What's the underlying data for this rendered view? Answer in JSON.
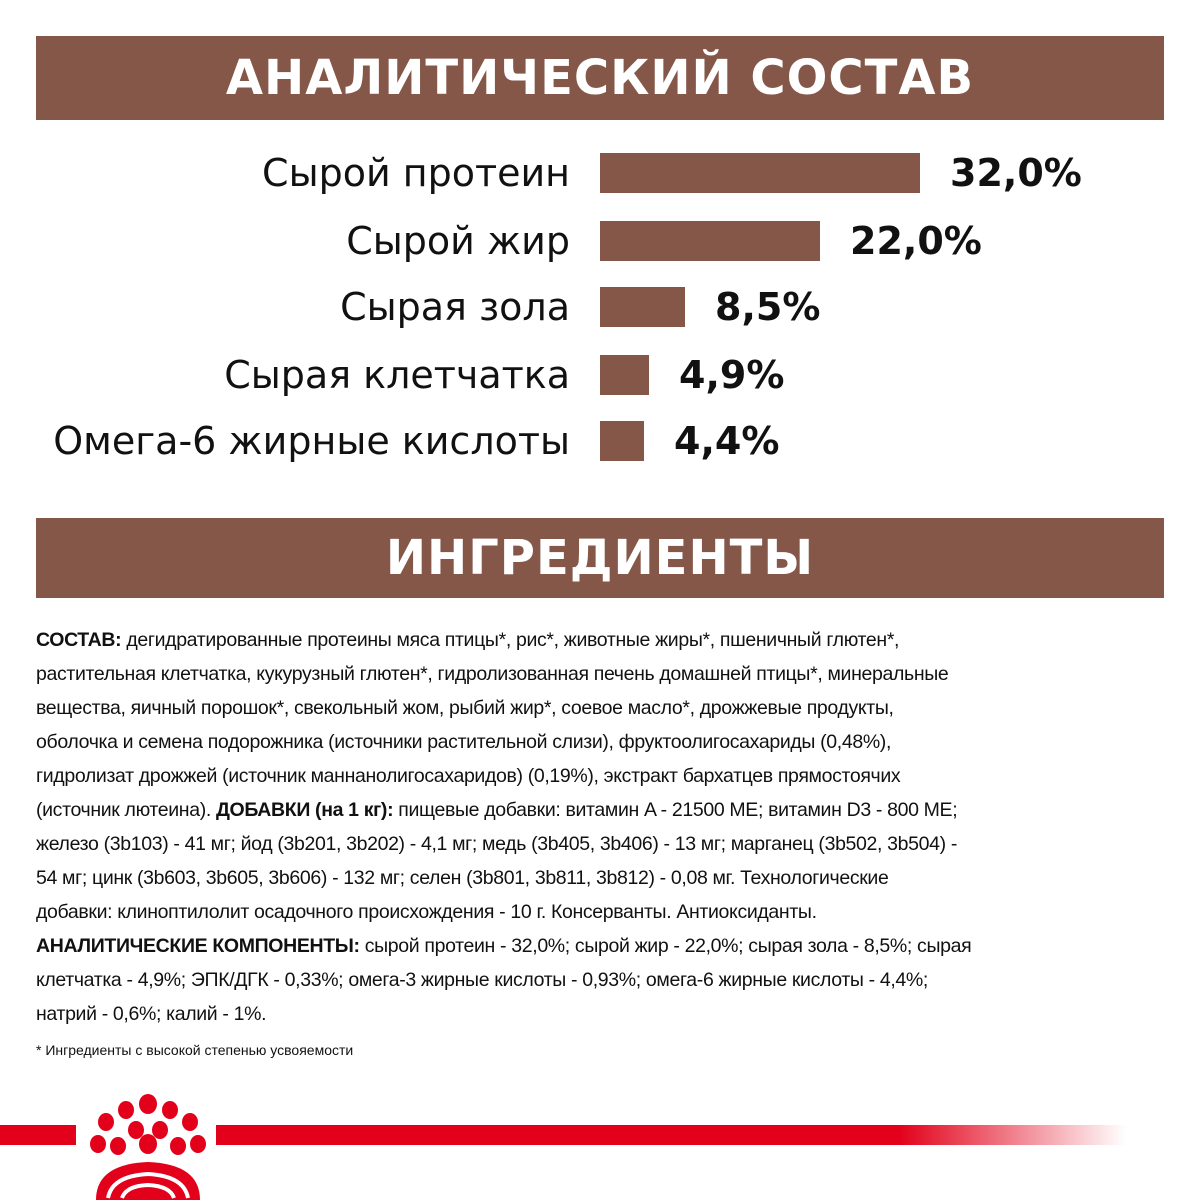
{
  "header_analytic": "АНАЛИТИЧЕСКИЙ СОСТАВ",
  "header_ingredients": "ИНГРЕДИЕНТЫ",
  "colors": {
    "bar": "#855749",
    "brand_red": "#e2001a"
  },
  "chart_data": {
    "type": "bar",
    "orientation": "horizontal",
    "title": "АНАЛИТИЧЕСКИЙ СОСТАВ",
    "categories": [
      "Сырой протеин",
      "Сырой жир",
      "Сырая зола",
      "Сырая клетчатка",
      "Омега-6 жирные кислоты"
    ],
    "values": [
      32.0,
      22.0,
      8.5,
      4.9,
      4.4
    ],
    "labels": [
      "32,0%",
      "22,0%",
      "8,5%",
      "4,9%",
      "4,4%"
    ],
    "unit": "%",
    "grid": false
  },
  "ingredients_lines": [
    [
      {
        "b": "СОСТАВ:"
      },
      {
        "t": " дегидратированные протеины мяса птицы*, рис*, животные жиры*, пшеничный глютен*,"
      }
    ],
    [
      {
        "t": "растительная клетчатка, кукурузный глютен*, гидролизованная печень домашней птицы*, минеральные"
      }
    ],
    [
      {
        "t": "вещества, яичный порошок*, свекольный жом, рыбий жир*, соевое масло*, дрожжевые продукты,"
      }
    ],
    [
      {
        "t": "оболочка и семена подорожника (источники растительной слизи), фруктоолигосахариды (0,48%),"
      }
    ],
    [
      {
        "t": "гидролизат дрожжей (источник маннанолигосахаридов) (0,19%), экстракт бархатцев прямостоячих"
      }
    ],
    [
      {
        "t": "(источник лютеина). "
      },
      {
        "b": "ДОБАВКИ (на 1 кг):"
      },
      {
        "t": " пищевые добавки: витамин A - 21500 МЕ; витамин D3 - 800 МЕ;"
      }
    ],
    [
      {
        "t": "железо (3b103) - 41 мг; йод (3b201, 3b202) - 4,1 мг; медь (3b405, 3b406) - 13 мг; марганец (3b502, 3b504) -"
      }
    ],
    [
      {
        "t": "54 мг; цинк (3b603, 3b605, 3b606) - 132 мг; селен (3b801, 3b811, 3b812) - 0,08 мг. Технологические"
      }
    ],
    [
      {
        "t": "добавки: клиноптилолит осадочного происхождения - 10 г. Консерванты. Антиоксиданты."
      }
    ],
    [
      {
        "b": "АНАЛИТИЧЕСКИЕ КОМПОНЕНТЫ:"
      },
      {
        "t": " сырой протеин - 32,0%; сырой жир - 22,0%; сырая зола - 8,5%; сырая"
      }
    ],
    [
      {
        "t": "клетчатка - 4,9%; ЭПК/ДГК - 0,33%; омега-3 жирные кислоты - 0,93%; омега-6 жирные кислоты - 4,4%;"
      }
    ],
    [
      {
        "t": "натрий - 0,6%; калий - 1%."
      }
    ]
  ],
  "footnote": "* Ингредиенты с высокой степенью усвояемости",
  "logo": {
    "icon": "royal-canin-crown-logo"
  }
}
